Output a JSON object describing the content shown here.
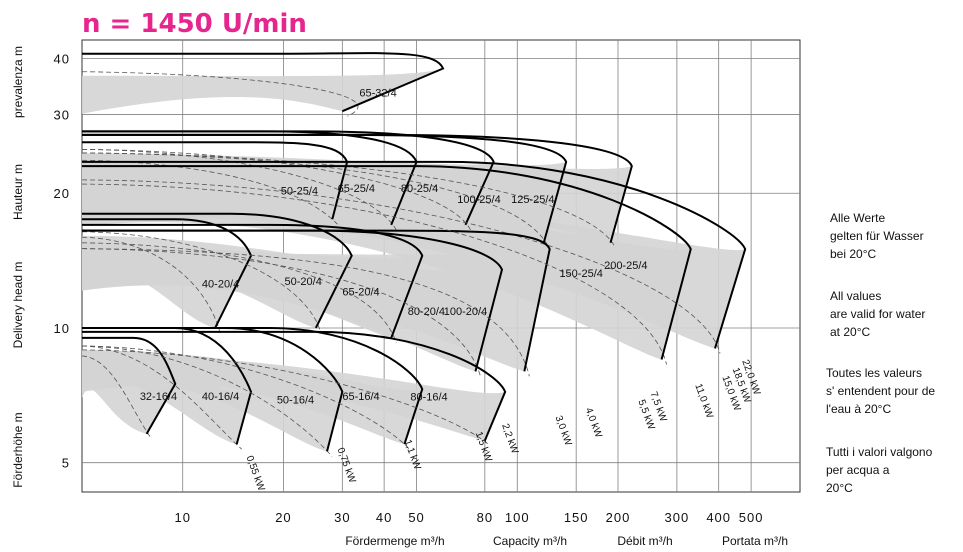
{
  "chart_data": {
    "type": "line",
    "title": "n = 1450 U/min",
    "x_scale": "log",
    "y_scale": "log",
    "xlim": [
      5,
      700
    ],
    "ylim": [
      4.3,
      44
    ],
    "x_ticks": [
      10,
      20,
      30,
      40,
      50,
      80,
      100,
      150,
      200,
      300,
      400,
      500
    ],
    "y_ticks": [
      5,
      10,
      20,
      30,
      40
    ],
    "xlabels": [
      "Fördermenge m³/h",
      "Capacity m³/h",
      "Débit m³/h",
      "Portata m³/h"
    ],
    "ylabels": [
      "Förderhöhe m",
      "Delivery head m",
      "Hauteur m",
      "prevalenza m"
    ],
    "grid": true,
    "notes": [
      [
        "Alle  Werte",
        "gelten für Wasser",
        "bei 20°C"
      ],
      [
        "All values",
        "are valid for water",
        "at 20°C"
      ],
      [
        "Toutes les valeurs",
        "s' entendent pour de",
        "l'eau à 20°C"
      ],
      [
        "Tutti i valori valgono",
        "per acqua a",
        "20°C"
      ]
    ],
    "models": [
      {
        "name": "65-32/4",
        "shut_off_head": 41,
        "q_max": 60,
        "h_end": 38,
        "q_min": 30,
        "h_min": 30.5
      },
      {
        "name": "50-25/4",
        "shut_off_head": 26,
        "q_max": 31,
        "h_end": 23.5,
        "q_min": 28,
        "h_min": 17.5
      },
      {
        "name": "65-25/4",
        "shut_off_head": 27.5,
        "q_max": 50,
        "h_end": 23.5,
        "q_min": 42,
        "h_min": 17
      },
      {
        "name": "80-25/4",
        "shut_off_head": 27.5,
        "q_max": 85,
        "h_end": 23.5,
        "q_min": 70,
        "h_min": 17
      },
      {
        "name": "100-25/4",
        "shut_off_head": 27,
        "q_max": 140,
        "h_end": 23.5,
        "q_min": 120,
        "h_min": 15.5
      },
      {
        "name": "125-25/4",
        "shut_off_head": 27,
        "q_max": 220,
        "h_end": 23,
        "q_min": 190,
        "h_min": 15.5
      },
      {
        "name": "200-25/4",
        "shut_off_head": 23.5,
        "q_max": 480,
        "h_end": 15,
        "q_min": 390,
        "h_min": 9
      },
      {
        "name": "40-20/4",
        "shut_off_head": 17.5,
        "q_max": 16,
        "h_end": 14.5,
        "q_min": 12.5,
        "h_min": 10
      },
      {
        "name": "50-20/4",
        "shut_off_head": 18,
        "q_max": 32,
        "h_end": 14.5,
        "q_min": 25,
        "h_min": 10
      },
      {
        "name": "65-20/4",
        "shut_off_head": 17,
        "q_max": 52,
        "h_end": 14.5,
        "q_min": 42,
        "h_min": 9.5
      },
      {
        "name": "80-20/4",
        "shut_off_head": 16.5,
        "q_max": 90,
        "h_end": 13.5,
        "q_min": 75,
        "h_min": 8
      },
      {
        "name": "100-20/4",
        "shut_off_head": 16.5,
        "q_max": 125,
        "h_end": 15,
        "q_min": 105,
        "h_min": 8
      },
      {
        "name": "150-25/4",
        "shut_off_head": 23,
        "q_max": 330,
        "h_end": 15,
        "q_min": 270,
        "h_min": 8.5
      },
      {
        "name": "32-16/4",
        "shut_off_head": 9.5,
        "q_max": 9.5,
        "h_end": 7.5,
        "q_min": 7.8,
        "h_min": 5.8
      },
      {
        "name": "40-16/4",
        "shut_off_head": 10,
        "q_max": 16,
        "h_end": 7.2,
        "q_min": 14.5,
        "h_min": 5.5
      },
      {
        "name": "50-16/4",
        "shut_off_head": 10,
        "q_max": 30,
        "h_end": 7.2,
        "q_min": 27,
        "h_min": 5.3
      },
      {
        "name": "65-16/4",
        "shut_off_head": 10,
        "q_max": 52,
        "h_end": 7.3,
        "q_min": 46,
        "h_min": 5.5
      },
      {
        "name": "80-16/4",
        "shut_off_head": 9.8,
        "q_max": 92,
        "h_end": 7.2,
        "q_min": 80,
        "h_min": 5.6
      }
    ],
    "power_labels": [
      "0,55 kW",
      "0,75 kW",
      "1,1 kW",
      "1,5 kW",
      "2,2 kW",
      "3,0 kW",
      "4,0 kW",
      "5,5 kW",
      "7,5 kW",
      "11,0 kW",
      "15,0 kW",
      "18,5 kW",
      "22,0 kW"
    ],
    "colors": {
      "title": "#e6258e",
      "band": "#d4d4d4",
      "curve": "#000000",
      "grid": "#808080"
    }
  }
}
